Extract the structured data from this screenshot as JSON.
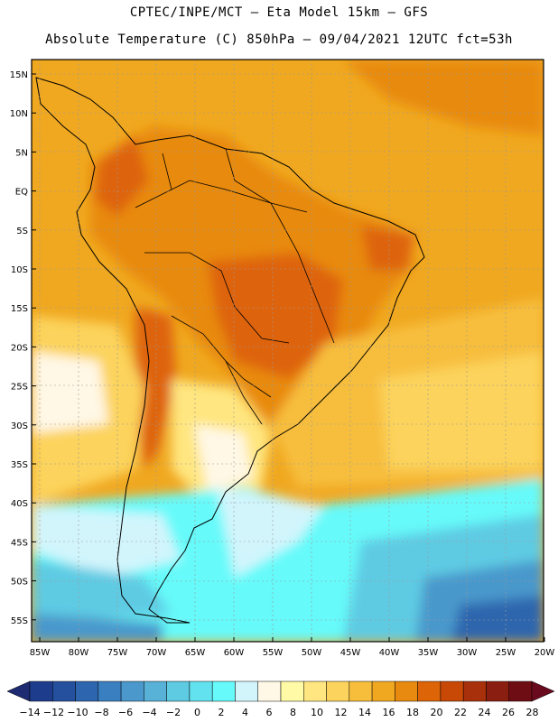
{
  "header": {
    "line1": "CPTEC/INPE/MCT –  Eta Model 15km – GFS",
    "line2": "Absolute Temperature (C) 850hPa – 09/04/2021 12UTC fct=53h"
  },
  "axes": {
    "lat_labels": [
      "15N",
      "10N",
      "5N",
      "EQ",
      "5S",
      "10S",
      "15S",
      "20S",
      "25S",
      "30S",
      "35S",
      "40S",
      "45S",
      "50S",
      "55S"
    ],
    "lon_labels": [
      "85W",
      "80W",
      "75W",
      "70W",
      "65W",
      "60W",
      "55W",
      "50W",
      "45W",
      "40W",
      "35W",
      "30W",
      "25W",
      "20W"
    ]
  },
  "colorbar": {
    "labels": [
      "-14",
      "-12",
      "-10",
      "-8",
      "-6",
      "-4",
      "-2",
      "0",
      "2",
      "4",
      "6",
      "8",
      "10",
      "12",
      "14",
      "16",
      "18",
      "20",
      "22",
      "24",
      "26",
      "28"
    ],
    "colors": [
      "#1e3c8c",
      "#24509e",
      "#2d66ae",
      "#3a7fbf",
      "#4a98cc",
      "#58b2d8",
      "#5ecbe3",
      "#62e2ee",
      "#66fafa",
      "#d2f5fc",
      "#fff8e6",
      "#fffaa6",
      "#ffe680",
      "#fcd35c",
      "#f7be3c",
      "#f0a820",
      "#e88a10",
      "#de6408",
      "#c84806",
      "#a8300a",
      "#8a1e10",
      "#6e0e14"
    ],
    "left_arrow_color": "#1e2a72",
    "right_arrow_color": "#6a0a1e"
  }
}
